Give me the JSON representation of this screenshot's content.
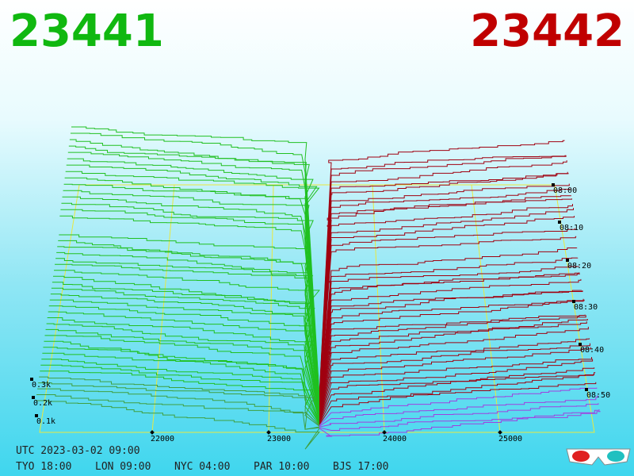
{
  "header": {
    "bid": "23441",
    "ask": "23442"
  },
  "x_axis": {
    "labels": [
      "22000",
      "23000",
      "24000",
      "25000"
    ]
  },
  "time_axis": {
    "labels": [
      "08:00",
      "08:10",
      "08:20",
      "08:30",
      "08:40",
      "08:50"
    ]
  },
  "depth_axis": {
    "labels": [
      "0.3k",
      "0.2k",
      "0.1k"
    ]
  },
  "footer": {
    "utc": "UTC 2023-03-02 09:00",
    "zones": [
      "TYO 18:00",
      "LON 09:00",
      "NYC 04:00",
      "PAR 10:00",
      "BJS 17:00"
    ]
  }
}
